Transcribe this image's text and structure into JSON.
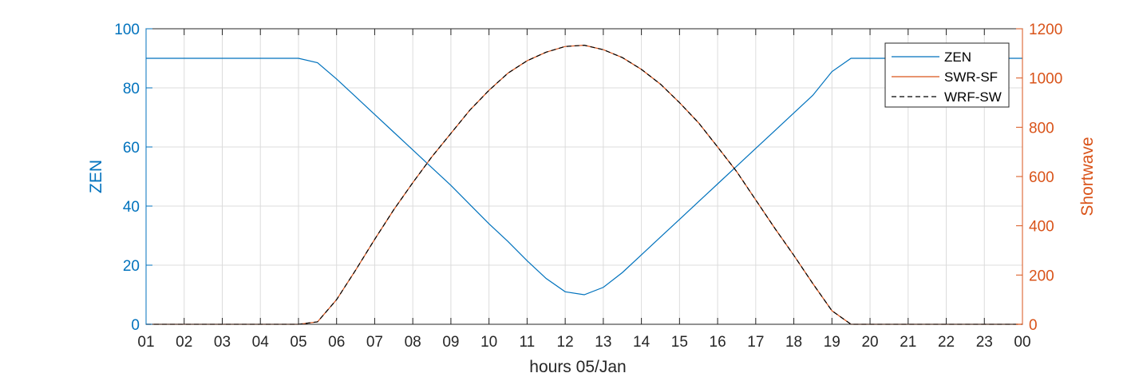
{
  "chart_data": {
    "type": "line",
    "xlabel": "hours 05/Jan",
    "ylabel_left": "ZEN",
    "ylabel_right": "Shortwave",
    "ylim_left": [
      0,
      100
    ],
    "ylim_right": [
      0,
      1200
    ],
    "xlim": [
      1,
      24
    ],
    "x_ticks": [
      1,
      2,
      3,
      4,
      5,
      6,
      7,
      8,
      9,
      10,
      11,
      12,
      13,
      14,
      15,
      16,
      17,
      18,
      19,
      20,
      21,
      22,
      23,
      24
    ],
    "x_tick_labels": [
      "01",
      "02",
      "03",
      "04",
      "05",
      "06",
      "07",
      "08",
      "09",
      "10",
      "11",
      "12",
      "13",
      "14",
      "15",
      "16",
      "17",
      "18",
      "19",
      "20",
      "21",
      "22",
      "23",
      "00"
    ],
    "y_left_ticks": [
      0,
      20,
      40,
      60,
      80,
      100
    ],
    "y_right_ticks": [
      0,
      200,
      400,
      600,
      800,
      1000,
      1200
    ],
    "grid": true,
    "legend_position": "top-right",
    "colors": {
      "left_axis": "#0072BD",
      "right_axis": "#D95319",
      "dashed": "#000000",
      "grid": "#dcdcdc"
    },
    "x": [
      1,
      1.5,
      2,
      2.5,
      3,
      3.5,
      4,
      4.5,
      5,
      5.5,
      6,
      6.5,
      7,
      7.5,
      8,
      8.5,
      9,
      9.5,
      10,
      10.5,
      11,
      11.5,
      12,
      12.5,
      13,
      13.5,
      14,
      14.5,
      15,
      15.5,
      16,
      16.5,
      17,
      17.5,
      18,
      18.5,
      19,
      19.5,
      20,
      20.5,
      21,
      21.5,
      22,
      22.5,
      23,
      23.5,
      24
    ],
    "series": [
      {
        "name": "ZEN",
        "axis": "left",
        "style": "solid",
        "color": "#0072BD",
        "values": [
          90,
          90,
          90,
          90,
          90,
          90,
          90,
          90,
          90,
          88.5,
          83,
          77,
          71,
          65,
          59,
          53,
          47,
          40.5,
          34,
          28,
          21.5,
          15.5,
          11,
          10,
          12.5,
          17.5,
          23.5,
          29.5,
          35.5,
          41.5,
          47.5,
          53.5,
          59.5,
          65.5,
          71.5,
          77.5,
          85.5,
          90,
          90,
          90,
          90,
          90,
          90,
          90,
          90,
          90,
          90
        ]
      },
      {
        "name": "SWR-SF",
        "axis": "right",
        "style": "solid",
        "color": "#D95319",
        "values": [
          0,
          0,
          0,
          0,
          0,
          0,
          0,
          0,
          0,
          10,
          100,
          220,
          345,
          465,
          575,
          680,
          775,
          870,
          950,
          1020,
          1070,
          1105,
          1128,
          1133,
          1115,
          1083,
          1035,
          975,
          900,
          818,
          720,
          620,
          505,
          390,
          280,
          165,
          55,
          0,
          0,
          0,
          0,
          0,
          0,
          0,
          0,
          0,
          0
        ]
      },
      {
        "name": "WRF-SW",
        "axis": "right",
        "style": "dashed",
        "color": "#000000",
        "values": [
          0,
          0,
          0,
          0,
          0,
          0,
          0,
          0,
          0,
          10,
          100,
          220,
          345,
          465,
          575,
          680,
          775,
          870,
          950,
          1020,
          1070,
          1105,
          1128,
          1133,
          1115,
          1083,
          1035,
          975,
          900,
          818,
          720,
          620,
          505,
          390,
          280,
          165,
          55,
          0,
          0,
          0,
          0,
          0,
          0,
          0,
          0,
          0,
          0
        ]
      }
    ]
  }
}
